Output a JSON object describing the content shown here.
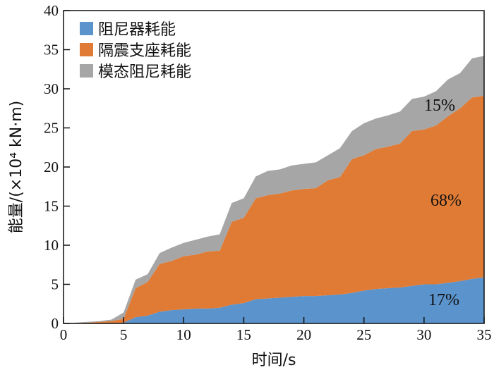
{
  "chart_data": {
    "type": "area",
    "stacked": true,
    "title": "",
    "xlabel": "时间/s",
    "ylabel": "能量/(×10⁴ kN·m)",
    "xlim": [
      0,
      35
    ],
    "ylim": [
      0,
      40
    ],
    "xticks": [
      "0",
      "5",
      "10",
      "15",
      "20",
      "25",
      "30",
      "35"
    ],
    "yticks": [
      "0",
      "5",
      "10",
      "15",
      "20",
      "25",
      "30",
      "35",
      "40"
    ],
    "grid": false,
    "legend_position": "top-left",
    "x": [
      0,
      1,
      2,
      3,
      4,
      5,
      6,
      7,
      8,
      9,
      10,
      11,
      12,
      13,
      14,
      15,
      16,
      17,
      18,
      19,
      20,
      21,
      22,
      23,
      24,
      25,
      26,
      27,
      28,
      29,
      30,
      31,
      32,
      33,
      34,
      35
    ],
    "series": [
      {
        "name": "阻尼器耗能",
        "color": "#5b93cc",
        "values": [
          0,
          0,
          0,
          0,
          0,
          0.1,
          0.8,
          1.0,
          1.5,
          1.7,
          1.8,
          1.9,
          1.9,
          2.0,
          2.4,
          2.6,
          3.1,
          3.2,
          3.3,
          3.4,
          3.5,
          3.5,
          3.6,
          3.7,
          3.9,
          4.2,
          4.4,
          4.5,
          4.6,
          4.8,
          5.0,
          5.0,
          5.2,
          5.4,
          5.7,
          5.9
        ]
      },
      {
        "name": "隔震支座耗能",
        "color": "#e07b35",
        "values": [
          0,
          0.05,
          0.1,
          0.2,
          0.3,
          0.5,
          3.7,
          4.3,
          6.1,
          6.3,
          6.8,
          6.9,
          7.3,
          7.3,
          10.6,
          10.9,
          12.9,
          13.2,
          13.3,
          13.6,
          13.7,
          13.8,
          14.7,
          15.0,
          17.1,
          17.3,
          17.9,
          18.1,
          18.4,
          19.8,
          19.8,
          20.3,
          21.3,
          22.1,
          23.2,
          23.2
        ]
      },
      {
        "name": "模态阻尼耗能",
        "color": "#a6a6a6",
        "values": [
          0,
          0.05,
          0.1,
          0.1,
          0.2,
          0.8,
          1.1,
          1.0,
          1.4,
          1.7,
          1.7,
          1.9,
          1.9,
          2.1,
          2.4,
          2.5,
          2.8,
          3.1,
          3.1,
          3.2,
          3.2,
          3.3,
          3.2,
          3.7,
          3.6,
          4.1,
          3.9,
          4.0,
          4.1,
          4.1,
          4.2,
          4.4,
          4.7,
          4.5,
          5.0,
          5.1
        ]
      }
    ],
    "annotations": [
      "17%",
      "68%",
      "15%"
    ]
  }
}
